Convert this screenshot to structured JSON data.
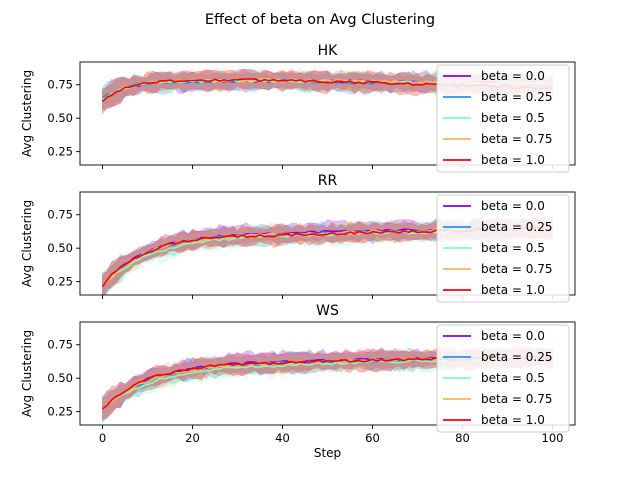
{
  "figure_title": "Effect of beta on  Avg Clustering",
  "series_colors": [
    "#8000ff",
    "#1996f3",
    "#80ffb4",
    "#ffb360",
    "#ff0000"
  ],
  "chart_data": [
    {
      "type": "line",
      "title": "HK",
      "xlabel": "",
      "ylabel": "Avg Clustering",
      "xlim": [
        -5,
        105
      ],
      "ylim": [
        0.15,
        0.92
      ],
      "xticks": [
        0,
        20,
        40,
        60,
        80,
        100
      ],
      "yticks": [
        0.25,
        0.5,
        0.75
      ],
      "ytick_labels": [
        "0.25",
        "0.50",
        "0.75"
      ],
      "legend_position": "right",
      "series": [
        {
          "name": "beta = 0.0",
          "start": 0.63,
          "plateau": 0.78,
          "rate": 0.2,
          "drift": -0.02
        },
        {
          "name": "beta = 0.25",
          "start": 0.65,
          "plateau": 0.775,
          "rate": 0.22,
          "drift": -0.03
        },
        {
          "name": "beta = 0.5",
          "start": 0.64,
          "plateau": 0.78,
          "rate": 0.18,
          "drift": -0.02
        },
        {
          "name": "beta = 0.75",
          "start": 0.63,
          "plateau": 0.785,
          "rate": 0.2,
          "drift": -0.03
        },
        {
          "name": "beta = 1.0",
          "start": 0.62,
          "plateau": 0.785,
          "rate": 0.21,
          "drift": -0.06
        }
      ]
    },
    {
      "type": "line",
      "title": "RR",
      "xlabel": "",
      "ylabel": "Avg Clustering",
      "xlim": [
        -5,
        105
      ],
      "ylim": [
        0.15,
        0.92
      ],
      "xticks": [
        0,
        20,
        40,
        60,
        80,
        100
      ],
      "yticks": [
        0.25,
        0.5,
        0.75
      ],
      "ytick_labels": [
        "0.25",
        "0.50",
        "0.75"
      ],
      "legend_position": "right",
      "series": [
        {
          "name": "beta = 0.0",
          "start": 0.22,
          "plateau": 0.62,
          "rate": 0.1,
          "drift": 0.03
        },
        {
          "name": "beta = 0.25",
          "start": 0.22,
          "plateau": 0.61,
          "rate": 0.1,
          "drift": 0.04
        },
        {
          "name": "beta = 0.5",
          "start": 0.22,
          "plateau": 0.6,
          "rate": 0.09,
          "drift": 0.04
        },
        {
          "name": "beta = 0.75",
          "start": 0.22,
          "plateau": 0.61,
          "rate": 0.1,
          "drift": 0.04
        },
        {
          "name": "beta = 1.0",
          "start": 0.22,
          "plateau": 0.6,
          "rate": 0.11,
          "drift": 0.05
        }
      ]
    },
    {
      "type": "line",
      "title": "WS",
      "xlabel": "Step",
      "ylabel": "Avg Clustering",
      "xlim": [
        -5,
        105
      ],
      "ylim": [
        0.15,
        0.92
      ],
      "xticks": [
        0,
        20,
        40,
        60,
        80,
        100
      ],
      "yticks": [
        0.25,
        0.5,
        0.75
      ],
      "ytick_labels": [
        "0.25",
        "0.50",
        "0.75"
      ],
      "legend_position": "right",
      "series": [
        {
          "name": "beta = 0.0",
          "start": 0.27,
          "plateau": 0.63,
          "rate": 0.09,
          "drift": 0.03
        },
        {
          "name": "beta = 0.25",
          "start": 0.27,
          "plateau": 0.62,
          "rate": 0.09,
          "drift": 0.03
        },
        {
          "name": "beta = 0.5",
          "start": 0.27,
          "plateau": 0.61,
          "rate": 0.08,
          "drift": 0.04
        },
        {
          "name": "beta = 0.75",
          "start": 0.27,
          "plateau": 0.62,
          "rate": 0.09,
          "drift": 0.04
        },
        {
          "name": "beta = 1.0",
          "start": 0.27,
          "plateau": 0.62,
          "rate": 0.1,
          "drift": 0.04
        }
      ]
    }
  ]
}
